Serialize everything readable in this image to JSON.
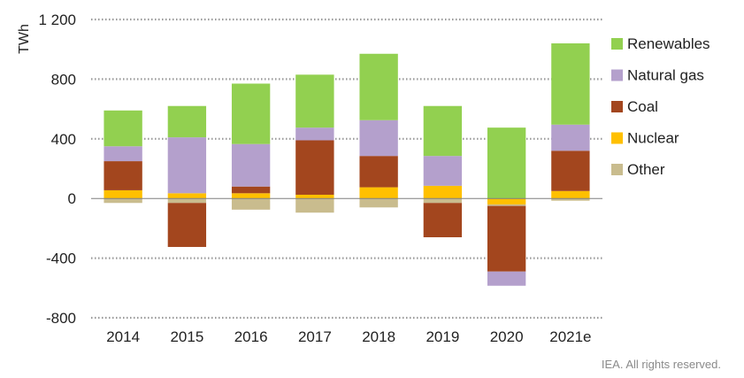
{
  "chart_data": {
    "type": "bar",
    "stacked": true,
    "ylabel": "TWh",
    "ylim": [
      -800,
      1200
    ],
    "yticks": [
      -800,
      -400,
      0,
      400,
      800,
      1200
    ],
    "ytick_labels": [
      "-800",
      "-400",
      "0",
      "400",
      "800",
      "1 200"
    ],
    "grid": "horizontal dotted",
    "legend_position": "right",
    "categories": [
      "2014",
      "2015",
      "2016",
      "2017",
      "2018",
      "2019",
      "2020",
      "2021e"
    ],
    "series": [
      {
        "name": "Nuclear",
        "color": "#FFC000",
        "values": [
          55,
          35,
          35,
          25,
          75,
          85,
          -40,
          50
        ]
      },
      {
        "name": "Other",
        "color": "#C9BC8E",
        "values": [
          -30,
          -30,
          -75,
          -95,
          -60,
          -30,
          -10,
          -15
        ]
      },
      {
        "name": "Coal",
        "color": "#A3461E",
        "values": [
          195,
          -295,
          45,
          365,
          210,
          -230,
          -440,
          270
        ]
      },
      {
        "name": "Natural gas",
        "color": "#B4A0CC",
        "values": [
          100,
          375,
          285,
          85,
          240,
          200,
          -95,
          175
        ]
      },
      {
        "name": "Renewables",
        "color": "#92D050",
        "values": [
          240,
          210,
          405,
          355,
          445,
          335,
          475,
          545
        ]
      }
    ],
    "legend_order": [
      "Renewables",
      "Natural gas",
      "Coal",
      "Nuclear",
      "Other"
    ]
  },
  "footer": {
    "credit": "IEA. All rights reserved."
  }
}
